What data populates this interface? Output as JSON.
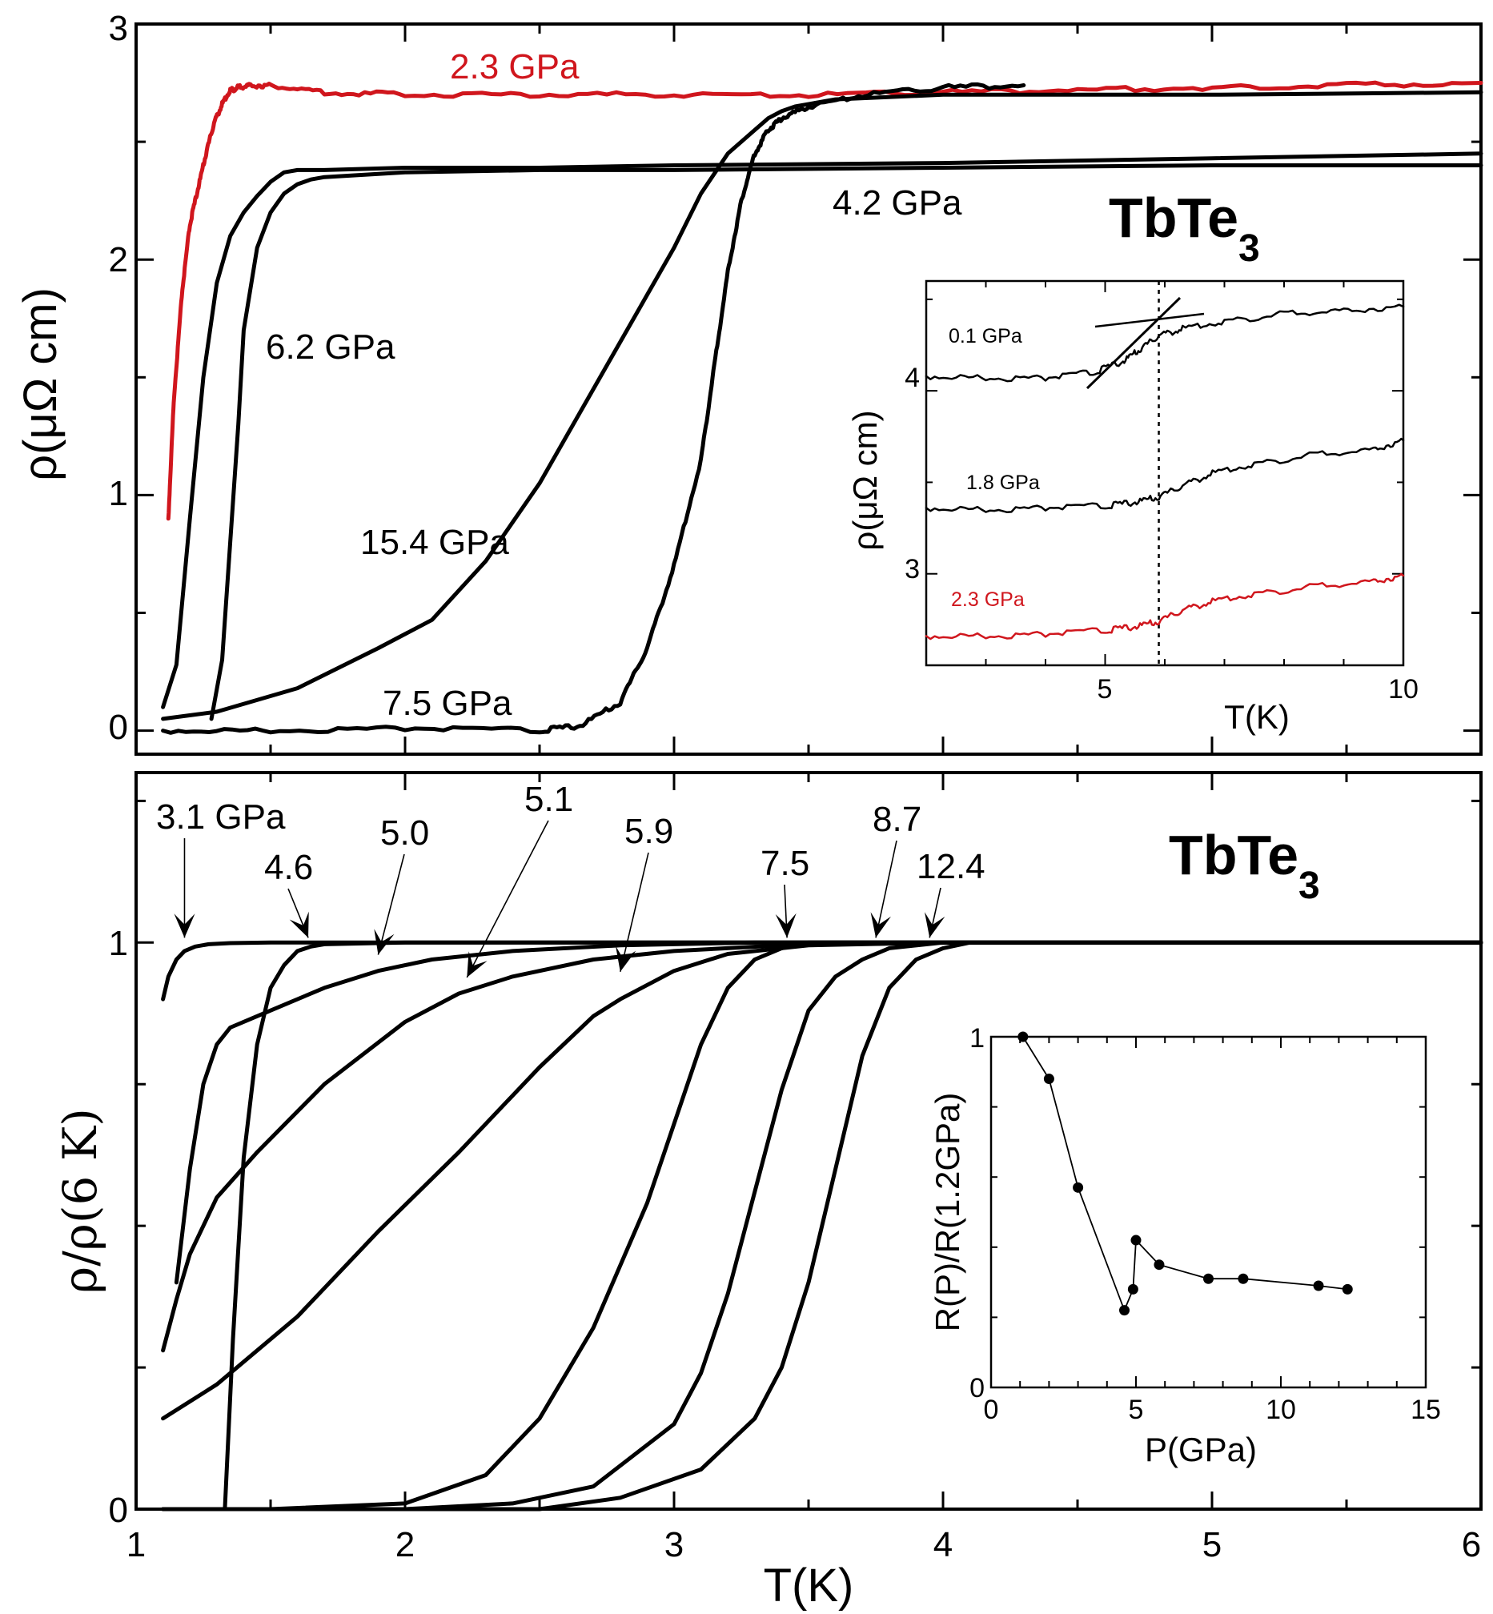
{
  "chart_data": [
    {
      "type": "line",
      "panel": "top",
      "material_label": {
        "main": "TbTe",
        "sub": "3"
      },
      "xlabel": "",
      "ylabel": "ρ(μΩ cm)",
      "xlim": [
        1,
        6
      ],
      "ylim": [
        -0.1,
        3
      ],
      "yticks": [
        "0",
        "1",
        "2",
        "3"
      ],
      "grid": false,
      "series": [
        {
          "label": "2.3 GPa",
          "color": "#d0161d",
          "x": [
            1.12,
            1.14,
            1.17,
            1.2,
            1.23,
            1.26,
            1.29,
            1.32,
            1.35,
            1.38,
            1.42,
            1.5,
            1.7,
            2.0,
            2.5,
            3.0,
            3.5,
            4.0,
            4.5,
            5.0,
            5.5,
            6.0
          ],
          "y": [
            0.9,
            1.4,
            1.85,
            2.15,
            2.3,
            2.45,
            2.58,
            2.66,
            2.72,
            2.73,
            2.74,
            2.74,
            2.71,
            2.7,
            2.7,
            2.7,
            2.7,
            2.71,
            2.72,
            2.73,
            2.74,
            2.75
          ]
        },
        {
          "label": "4.2 GPa",
          "color": "#000000",
          "x": [
            1.1,
            1.15,
            1.2,
            1.25,
            1.3,
            1.35,
            1.4,
            1.45,
            1.5,
            1.55,
            1.6,
            1.7,
            2.0,
            2.5,
            3.0,
            4.0,
            5.0,
            6.0
          ],
          "y": [
            0.1,
            0.28,
            0.9,
            1.5,
            1.9,
            2.1,
            2.2,
            2.27,
            2.33,
            2.37,
            2.38,
            2.38,
            2.39,
            2.39,
            2.4,
            2.41,
            2.43,
            2.45
          ]
        },
        {
          "label": "6.2 GPa",
          "color": "#000000",
          "x": [
            1.28,
            1.32,
            1.35,
            1.38,
            1.4,
            1.45,
            1.5,
            1.55,
            1.6,
            1.65,
            1.7,
            2.0,
            2.5,
            3.0,
            4.0,
            5.0,
            6.0
          ],
          "y": [
            0.05,
            0.3,
            0.8,
            1.3,
            1.7,
            2.05,
            2.2,
            2.28,
            2.32,
            2.34,
            2.35,
            2.37,
            2.38,
            2.38,
            2.39,
            2.4,
            2.4
          ]
        },
        {
          "label": "15.4 GPa",
          "color": "#000000",
          "x": [
            1.1,
            1.3,
            1.6,
            1.9,
            2.1,
            2.3,
            2.5,
            2.7,
            2.9,
            3.0,
            3.1,
            3.2,
            3.3,
            3.35,
            3.4,
            3.45,
            3.6,
            4.0,
            5.0,
            6.0
          ],
          "y": [
            0.05,
            0.08,
            0.18,
            0.35,
            0.47,
            0.72,
            1.05,
            1.45,
            1.85,
            2.05,
            2.28,
            2.45,
            2.55,
            2.6,
            2.63,
            2.65,
            2.68,
            2.7,
            2.7,
            2.71
          ]
        },
        {
          "label": "7.5 GPa",
          "color": "#000000",
          "x": [
            1.1,
            1.5,
            2.0,
            2.5,
            2.65,
            2.8,
            2.9,
            3.0,
            3.1,
            3.15,
            3.2,
            3.25,
            3.3,
            3.35,
            3.4,
            3.5,
            3.7,
            4.0,
            4.3
          ],
          "y": [
            0.0,
            0.0,
            0.01,
            0.0,
            0.02,
            0.12,
            0.35,
            0.7,
            1.15,
            1.55,
            1.95,
            2.25,
            2.45,
            2.55,
            2.6,
            2.65,
            2.7,
            2.73,
            2.74
          ]
        }
      ]
    },
    {
      "type": "line",
      "panel": "top-inset",
      "xlabel": "T(K)",
      "ylabel": "ρ(μΩ cm)",
      "xlim": [
        2,
        10
      ],
      "ylim": [
        2.5,
        4.6
      ],
      "xticks": [
        "5",
        "10"
      ],
      "yticks": [
        "3",
        "4"
      ],
      "guide_line_x": 5.9,
      "series": [
        {
          "label": "0.1 GPa",
          "color": "#000000",
          "x": [
            2.0,
            3.0,
            4.0,
            4.8,
            5.3,
            5.6,
            5.9,
            6.3,
            7.0,
            8.0,
            9.0,
            10.0
          ],
          "y": [
            4.08,
            4.07,
            4.07,
            4.1,
            4.16,
            4.23,
            4.3,
            4.34,
            4.38,
            4.42,
            4.44,
            4.46
          ]
        },
        {
          "label": "1.8 GPa",
          "color": "#000000",
          "x": [
            2.0,
            3.0,
            4.0,
            5.0,
            5.5,
            5.9,
            6.3,
            6.8,
            7.5,
            8.5,
            9.5,
            10.0
          ],
          "y": [
            3.36,
            3.35,
            3.36,
            3.37,
            3.39,
            3.42,
            3.48,
            3.55,
            3.6,
            3.65,
            3.68,
            3.73
          ]
        },
        {
          "label": "2.3 GPa",
          "color": "#d0161d",
          "x": [
            2.0,
            3.0,
            4.0,
            5.0,
            5.5,
            5.9,
            6.3,
            6.8,
            7.5,
            8.5,
            9.5,
            10.0
          ],
          "y": [
            2.66,
            2.66,
            2.67,
            2.69,
            2.71,
            2.74,
            2.8,
            2.85,
            2.89,
            2.93,
            2.96,
            2.99
          ]
        }
      ]
    },
    {
      "type": "line",
      "panel": "bottom",
      "material_label": {
        "main": "TbTe",
        "sub": "3"
      },
      "xlabel": "T(K)",
      "ylabel": "ρ/ρ(6 K)",
      "xlim": [
        1,
        6
      ],
      "ylim": [
        0,
        1.3
      ],
      "xticks": [
        "1",
        "2",
        "3",
        "4",
        "5",
        "6"
      ],
      "yticks": [
        "0",
        "1"
      ],
      "arrows": [
        {
          "label": "3.1 GPa",
          "tip": [
            1.18,
            1.0
          ]
        },
        {
          "label": "4.6",
          "tip": [
            1.64,
            1.0
          ]
        },
        {
          "label": "5.0",
          "tip": [
            1.9,
            0.97
          ]
        },
        {
          "label": "5.1",
          "tip": [
            2.23,
            0.93
          ]
        },
        {
          "label": "5.9",
          "tip": [
            2.8,
            0.94
          ]
        },
        {
          "label": "7.5",
          "tip": [
            3.42,
            1.0
          ]
        },
        {
          "label": "8.7",
          "tip": [
            3.75,
            1.0
          ]
        },
        {
          "label": "12.4",
          "tip": [
            3.95,
            1.0
          ]
        }
      ],
      "series": [
        {
          "label": "3.1 GPa",
          "x": [
            1.1,
            1.12,
            1.15,
            1.18,
            1.22,
            1.27,
            1.35,
            1.5,
            2.0,
            3.0,
            4.0,
            5.0,
            6.0
          ],
          "y": [
            0.9,
            0.94,
            0.97,
            0.985,
            0.993,
            0.997,
            0.999,
            1.0,
            1.0,
            1.0,
            1.0,
            1.0,
            1.0
          ]
        },
        {
          "label": "4.6",
          "x": [
            1.33,
            1.36,
            1.4,
            1.45,
            1.5,
            1.55,
            1.6,
            1.65,
            1.7,
            2.0,
            3.0,
            4.0,
            6.0
          ],
          "y": [
            0.0,
            0.3,
            0.62,
            0.82,
            0.92,
            0.96,
            0.985,
            0.993,
            0.997,
            1.0,
            1.0,
            1.0,
            1.0
          ]
        },
        {
          "label": "5.0",
          "x": [
            1.15,
            1.2,
            1.25,
            1.3,
            1.35,
            1.5,
            1.7,
            1.9,
            2.1,
            2.4,
            2.8,
            3.3,
            4.0,
            6.0
          ],
          "y": [
            0.4,
            0.6,
            0.75,
            0.82,
            0.85,
            0.88,
            0.92,
            0.95,
            0.97,
            0.985,
            0.995,
            1.0,
            1.0,
            1.0
          ]
        },
        {
          "label": "5.1",
          "x": [
            1.1,
            1.15,
            1.2,
            1.3,
            1.45,
            1.7,
            2.0,
            2.2,
            2.4,
            2.7,
            3.0,
            3.4,
            4.0,
            6.0
          ],
          "y": [
            0.28,
            0.37,
            0.45,
            0.55,
            0.63,
            0.75,
            0.86,
            0.91,
            0.94,
            0.97,
            0.985,
            0.995,
            1.0,
            1.0
          ]
        },
        {
          "label": "5.9",
          "x": [
            1.1,
            1.3,
            1.6,
            1.9,
            2.2,
            2.5,
            2.7,
            2.8,
            3.0,
            3.2,
            3.5,
            4.0,
            6.0
          ],
          "y": [
            0.16,
            0.22,
            0.34,
            0.49,
            0.63,
            0.78,
            0.87,
            0.9,
            0.95,
            0.98,
            0.995,
            1.0,
            1.0
          ]
        },
        {
          "label": "7.5",
          "x": [
            1.1,
            1.5,
            2.0,
            2.3,
            2.5,
            2.7,
            2.9,
            3.0,
            3.1,
            3.2,
            3.3,
            3.4,
            3.5,
            4.0,
            6.0
          ],
          "y": [
            0.0,
            0.0,
            0.01,
            0.06,
            0.16,
            0.32,
            0.54,
            0.68,
            0.82,
            0.92,
            0.97,
            0.99,
            1.0,
            1.0,
            1.0
          ]
        },
        {
          "label": "8.7",
          "x": [
            1.1,
            2.0,
            2.4,
            2.7,
            3.0,
            3.1,
            3.2,
            3.3,
            3.4,
            3.5,
            3.6,
            3.7,
            3.8,
            4.0,
            6.0
          ],
          "y": [
            0.0,
            0.0,
            0.01,
            0.04,
            0.15,
            0.24,
            0.38,
            0.56,
            0.74,
            0.88,
            0.94,
            0.97,
            0.99,
            1.0,
            1.0
          ]
        },
        {
          "label": "12.4",
          "x": [
            1.1,
            2.0,
            2.5,
            2.8,
            3.1,
            3.3,
            3.4,
            3.5,
            3.6,
            3.7,
            3.8,
            3.9,
            4.0,
            4.1,
            6.0
          ],
          "y": [
            0.0,
            0.0,
            0.0,
            0.02,
            0.07,
            0.16,
            0.25,
            0.4,
            0.6,
            0.8,
            0.92,
            0.97,
            0.99,
            1.0,
            1.0
          ]
        }
      ]
    },
    {
      "type": "scatter",
      "panel": "bottom-inset",
      "xlabel": "P(GPa)",
      "ylabel": "R(P)/R(1.2GPa)",
      "xlim": [
        0,
        15
      ],
      "ylim": [
        0,
        1
      ],
      "xticks": [
        "0",
        "5",
        "10",
        "15"
      ],
      "yticks": [
        "0",
        "1"
      ],
      "x": [
        1.1,
        2.0,
        3.0,
        4.6,
        4.9,
        5.0,
        5.8,
        7.5,
        8.7,
        11.3,
        12.3
      ],
      "y": [
        1.0,
        0.88,
        0.57,
        0.22,
        0.28,
        0.42,
        0.35,
        0.31,
        0.31,
        0.29,
        0.28
      ]
    }
  ]
}
